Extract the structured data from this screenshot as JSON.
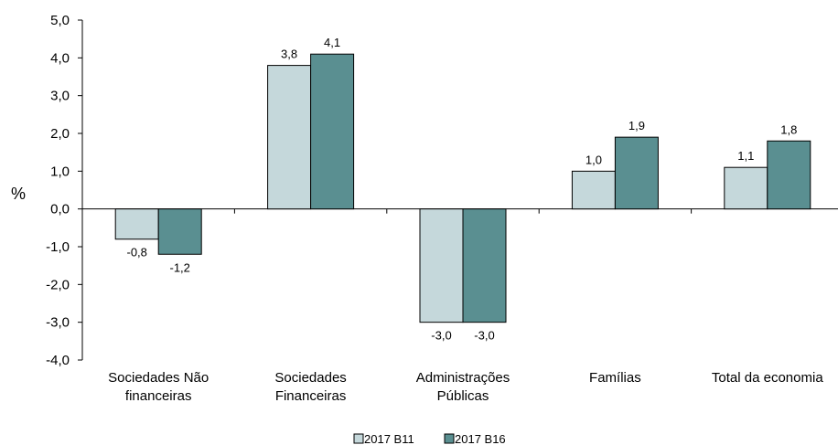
{
  "chart_data": {
    "type": "bar",
    "ylabel": "%",
    "ylim": [
      -4,
      5
    ],
    "ytick_step": 1,
    "ytick_labels": [
      "-4,0",
      "-3,0",
      "-2,0",
      "-1,0",
      "0,0",
      "1,0",
      "2,0",
      "3,0",
      "4,0",
      "5,0"
    ],
    "categories": [
      [
        "Sociedades Não",
        "financeiras"
      ],
      [
        "Sociedades",
        "Financeiras"
      ],
      [
        "Administrações",
        "Públicas"
      ],
      [
        "Famílias"
      ],
      [
        "Total da economia"
      ]
    ],
    "series": [
      {
        "name": "2017 B11",
        "color": "#c5d8db",
        "values": [
          -0.8,
          3.8,
          -3.0,
          1.0,
          1.1
        ],
        "labels": [
          "-0,8",
          "3,8",
          "-3,0",
          "1,0",
          "1,1"
        ]
      },
      {
        "name": "2017 B16",
        "color": "#5a8f91",
        "values": [
          -1.2,
          4.1,
          -3.0,
          1.9,
          1.8
        ],
        "labels": [
          "-1,2",
          "4,1",
          "-3,0",
          "1,9",
          "1,8"
        ]
      }
    ],
    "grid": false,
    "legend_position": "bottom"
  }
}
